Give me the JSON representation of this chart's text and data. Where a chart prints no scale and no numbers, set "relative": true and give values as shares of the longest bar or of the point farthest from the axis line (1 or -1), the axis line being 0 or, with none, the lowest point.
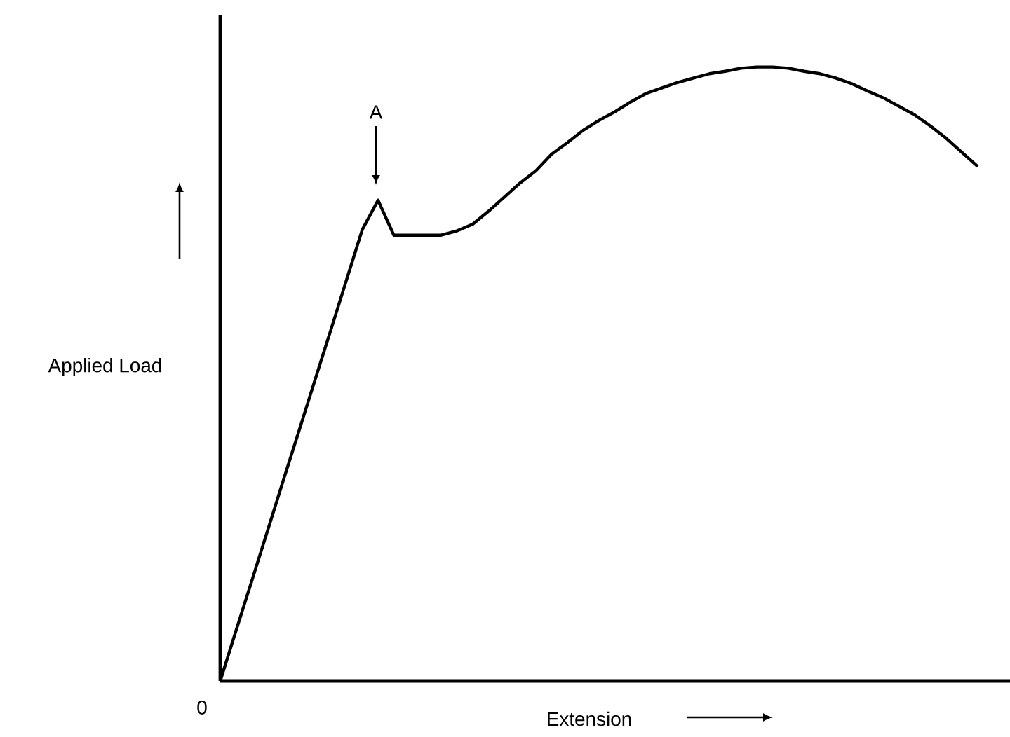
{
  "chart_data": {
    "type": "line",
    "relative": true,
    "xlabel": "Extension",
    "ylabel": "Applied Load",
    "categories": [
      null,
      null,
      null,
      null,
      null,
      null,
      null,
      null,
      null,
      null,
      null,
      null,
      null,
      null,
      null,
      null,
      null,
      null,
      null,
      null,
      null,
      null,
      null,
      null,
      null,
      null,
      null,
      null,
      null,
      null,
      null,
      null,
      null,
      null,
      null,
      null,
      null,
      null,
      null,
      null,
      null,
      null,
      null,
      null,
      null,
      null,
      null,
      null,
      null
    ],
    "values": [
      0,
      0.082,
      0.163,
      0.245,
      0.327,
      0.408,
      0.49,
      0.571,
      0.653,
      0.735,
      0.783,
      0.726,
      0.726,
      0.726,
      0.726,
      0.733,
      0.744,
      0.765,
      0.788,
      0.811,
      0.831,
      0.858,
      0.877,
      0.897,
      0.913,
      0.927,
      0.943,
      0.957,
      0.966,
      0.975,
      0.982,
      0.989,
      0.993,
      0.998,
      1,
      1,
      0.998,
      0.993,
      0.989,
      0.982,
      0.973,
      0.961,
      0.95,
      0.936,
      0.922,
      0.904,
      0.884,
      0.861,
      0.838
    ],
    "color": "#000000",
    "annotations": [
      "A",
      "0"
    ]
  }
}
